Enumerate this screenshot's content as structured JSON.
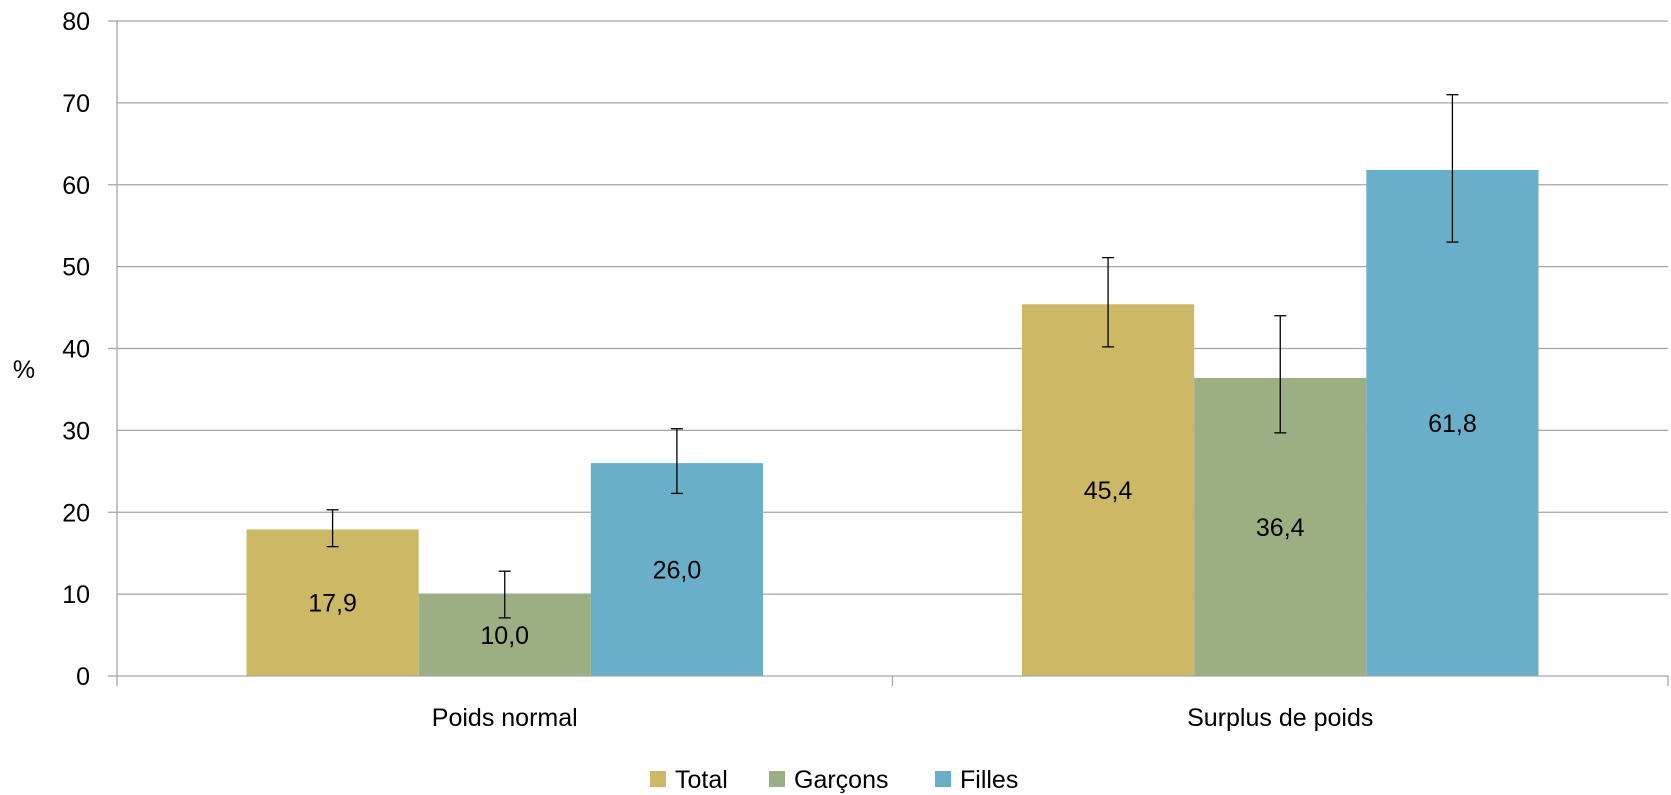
{
  "chart_data": {
    "type": "bar",
    "categories": [
      "Poids normal",
      "Surplus de poids"
    ],
    "series": [
      {
        "name": "Total",
        "color": "#CDB865",
        "values": [
          17.9,
          45.4
        ],
        "labels": [
          "17,9",
          "45,4"
        ],
        "error_low": [
          15.8,
          40.2
        ],
        "error_high": [
          20.3,
          51.1
        ]
      },
      {
        "name": "Garçons",
        "color": "#9BAF82",
        "values": [
          10.0,
          36.4
        ],
        "labels": [
          "10,0",
          "36,4"
        ],
        "error_low": [
          7.1,
          29.7
        ],
        "error_high": [
          12.8,
          44.0
        ]
      },
      {
        "name": "Filles",
        "color": "#6AAFC9",
        "values": [
          26.0,
          61.8
        ],
        "labels": [
          "26,0",
          "61,8"
        ],
        "error_low": [
          22.3,
          53.0
        ],
        "error_high": [
          30.2,
          71.0
        ]
      }
    ],
    "ylabel": "%",
    "xlabel": "",
    "ylim": [
      0,
      80
    ],
    "yticks": [
      0,
      10,
      20,
      30,
      40,
      50,
      60,
      70,
      80
    ],
    "grid": true,
    "legend_position": "bottom"
  }
}
